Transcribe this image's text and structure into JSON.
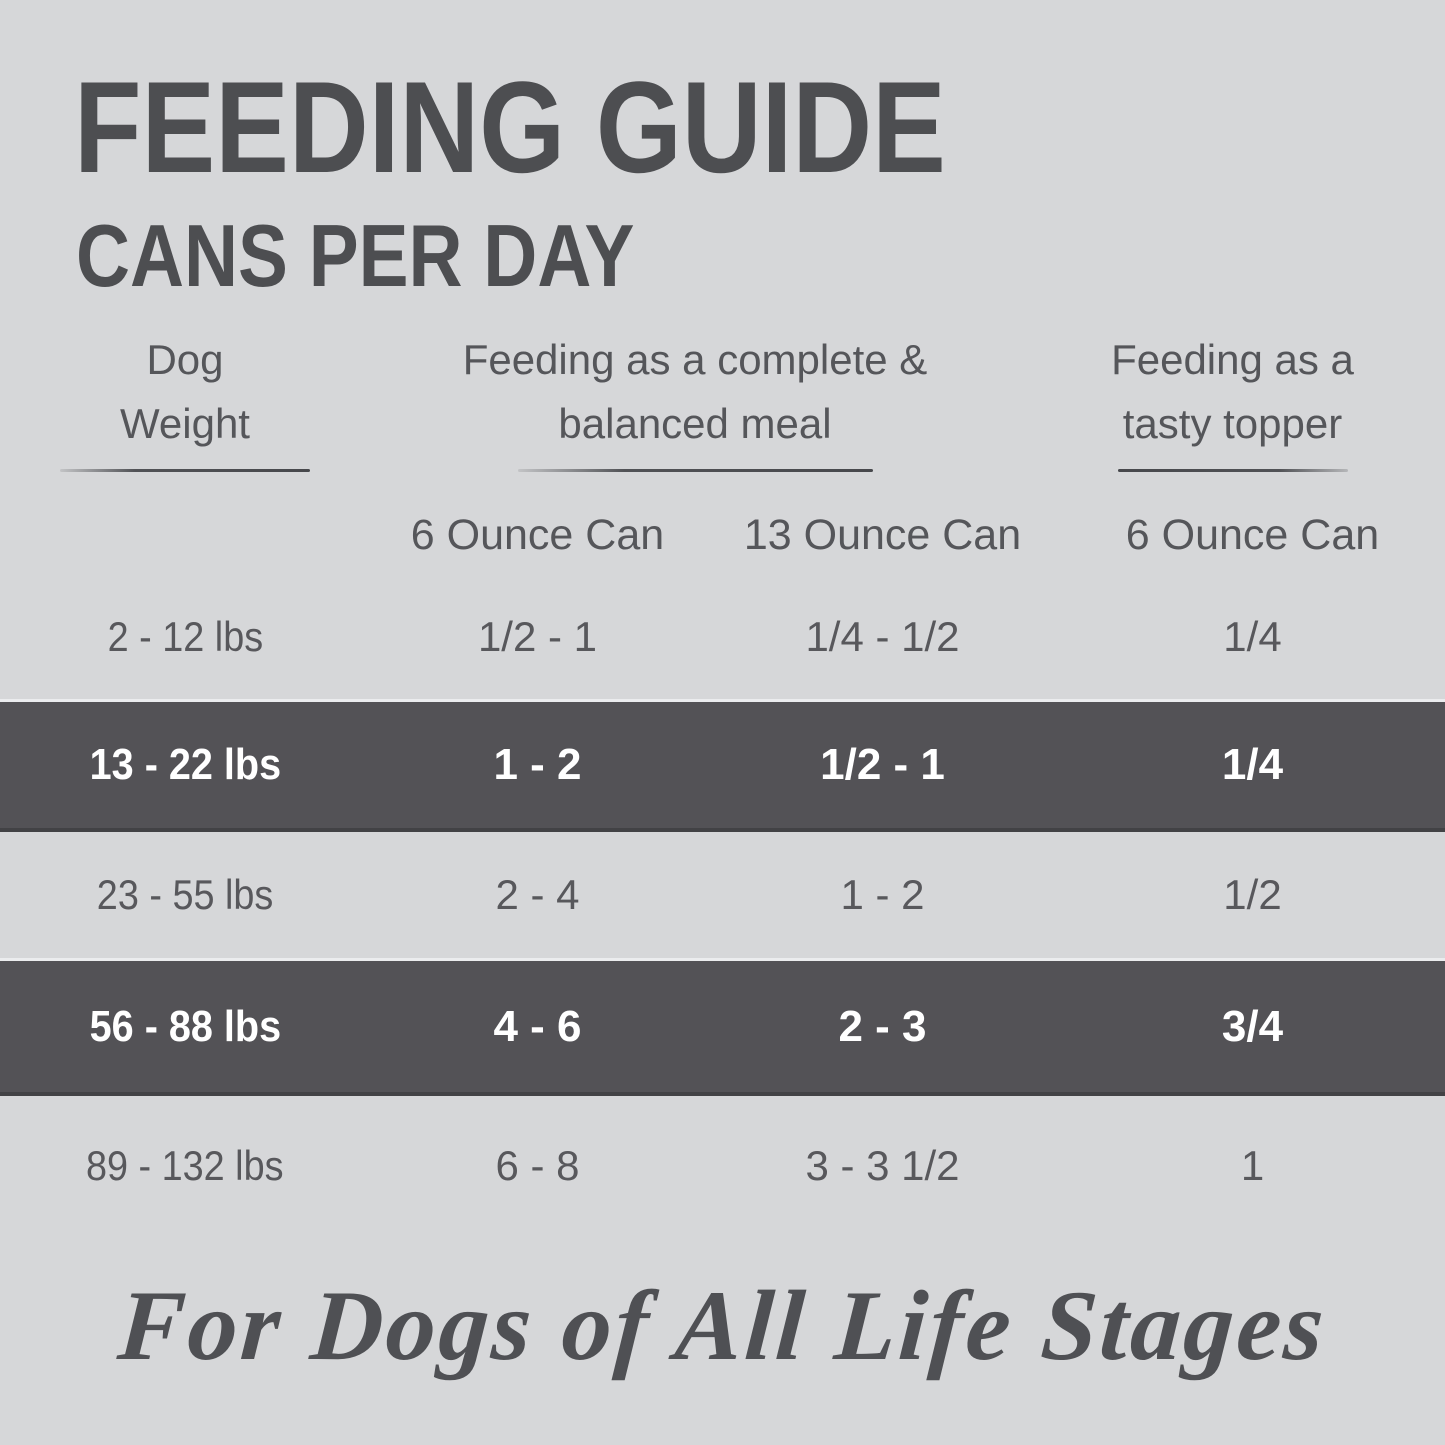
{
  "page": {
    "title": "FEEDING GUIDE",
    "subtitle": "CANS PER DAY"
  },
  "table": {
    "column_groups": [
      {
        "line1": "Dog",
        "line2": "Weight"
      },
      {
        "line1": "Feeding as a complete &",
        "line2": "balanced meal"
      },
      {
        "line1": "Feeding as a",
        "line2": "tasty topper"
      }
    ],
    "sub_headers": [
      "6 Ounce Can",
      "13 Ounce Can",
      "6 Ounce Can"
    ],
    "rows": [
      {
        "highlighted": false,
        "cells": [
          "2 - 12 lbs",
          "1/2 - 1",
          "1/4 - 1/2",
          "1/4"
        ]
      },
      {
        "highlighted": true,
        "cells": [
          "13 - 22 lbs",
          "1 - 2",
          "1/2 - 1",
          "1/4"
        ]
      },
      {
        "highlighted": false,
        "cells": [
          "23 - 55 lbs",
          "2 - 4",
          "1 - 2",
          "1/2"
        ]
      },
      {
        "highlighted": true,
        "cells": [
          "56 - 88 lbs",
          "4 - 6",
          "2 - 3",
          "3/4"
        ]
      },
      {
        "highlighted": false,
        "cells": [
          "89 - 132 lbs",
          "6 - 8",
          "3 - 3 1/2",
          "1"
        ]
      }
    ]
  },
  "footer": {
    "tagline": "For Dogs of All Life Stages"
  },
  "colors": {
    "background": "#d6d7d9",
    "highlight_row": "#535256",
    "heading_text": "#4d4e51",
    "body_text": "#57585c",
    "highlight_text": "#ffffff"
  },
  "chart_data": {
    "type": "table",
    "title": "FEEDING GUIDE",
    "subtitle": "CANS PER DAY",
    "columns": [
      "Dog Weight",
      "Feeding as a complete & balanced meal - 6 Ounce Can",
      "Feeding as a complete & balanced meal - 13 Ounce Can",
      "Feeding as a tasty topper - 6 Ounce Can"
    ],
    "rows": [
      [
        "2 - 12 lbs",
        "1/2 - 1",
        "1/4 - 1/2",
        "1/4"
      ],
      [
        "13 - 22 lbs",
        "1 - 2",
        "1/2 - 1",
        "1/4"
      ],
      [
        "23 - 55 lbs",
        "2 - 4",
        "1 - 2",
        "1/2"
      ],
      [
        "56 - 88 lbs",
        "4 - 6",
        "2 - 3",
        "3/4"
      ],
      [
        "89 - 132 lbs",
        "6 - 8",
        "3 - 3 1/2",
        "1"
      ]
    ],
    "annotations": [
      "For Dogs of All Life Stages"
    ],
    "layout": "highlighted rows: 13 - 22 lbs and 56 - 88 lbs (dark band, white text); grid off; header rules under each column group"
  }
}
